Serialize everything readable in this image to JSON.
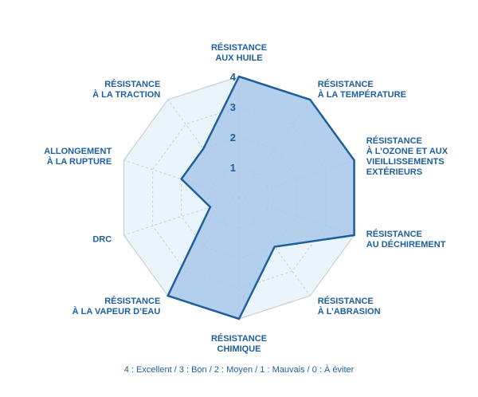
{
  "chart_data": {
    "type": "radar",
    "scale_max": 4,
    "ticks": [
      "1",
      "2",
      "3",
      "4"
    ],
    "axes": [
      {
        "lines": [
          "RÉSISTANCE",
          "AUX HUILE"
        ],
        "value": 4
      },
      {
        "lines": [
          "RÉSISTANCE",
          "À LA TEMPÉRATURE"
        ],
        "value": 4
      },
      {
        "lines": [
          "RÉSISTANCE",
          "À L’OZONE ET AUX",
          "VIEILLISSEMENTS",
          "EXTÉRIEURS"
        ],
        "value": 4
      },
      {
        "lines": [
          "RÉSISTANCE",
          "AU DÉCHIREMENT"
        ],
        "value": 4
      },
      {
        "lines": [
          "RÉSISTANCE",
          "À L’ABRASION"
        ],
        "value": 2
      },
      {
        "lines": [
          "RÉSISTANCE",
          "CHIMIQUE"
        ],
        "value": 4
      },
      {
        "lines": [
          "RÉSISTANCE",
          "À LA VAPEUR D’EAU"
        ],
        "value": 4
      },
      {
        "lines": [
          "DRC"
        ],
        "value": 1
      },
      {
        "lines": [
          "ALLONGEMENT",
          "À LA RUPTURE"
        ],
        "value": 2
      },
      {
        "lines": [
          "RÉSISTANCE",
          "À LA TRACTION"
        ],
        "value": 2
      }
    ],
    "colors": {
      "fill": "#a9c8e8",
      "stroke": "#1d5f9c",
      "background_outer": "#e9f4fb",
      "grid": "#c6cdd3",
      "text": "#1d5f9c"
    }
  },
  "legend_text": "4 : Excellent / 3 : Bon / 2 :  Moyen / 1 : Mauvais / 0 : À éviter"
}
